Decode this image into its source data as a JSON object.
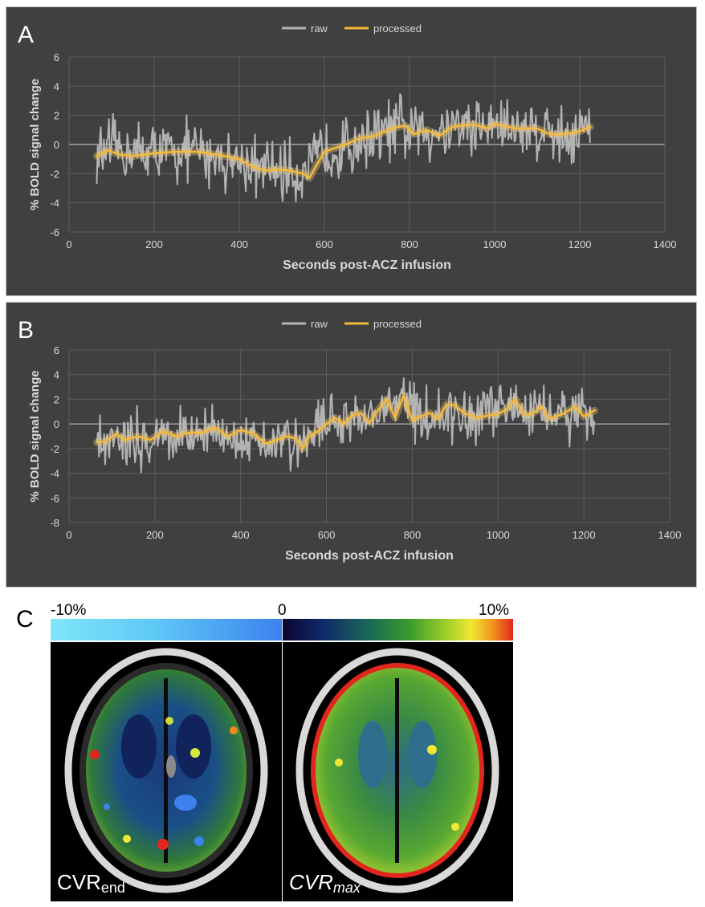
{
  "figure": {
    "panel_a_letter": "A",
    "panel_b_letter": "B",
    "panel_c_letter": "C"
  },
  "chart_data": [
    {
      "type": "line",
      "panel": "A",
      "xlabel": "Seconds post-ACZ infusion",
      "ylabel": "% BOLD signal change",
      "xlim": [
        0,
        1400
      ],
      "ylim": [
        -6,
        6
      ],
      "xticks": [
        0,
        200,
        400,
        600,
        800,
        1000,
        1200,
        1400
      ],
      "yticks": [
        -6,
        -4,
        -2,
        0,
        2,
        4,
        6
      ],
      "grid": true,
      "legend": "top-center",
      "series": [
        {
          "name": "raw",
          "color": "#b3b3b3",
          "x_range": [
            65,
            1225
          ],
          "trend_x": [
            65,
            100,
            200,
            300,
            350,
            400,
            450,
            500,
            550,
            570,
            590,
            620,
            650,
            700,
            750,
            780,
            800,
            830,
            860,
            900,
            950,
            1000,
            1050,
            1100,
            1150,
            1200,
            1225
          ],
          "trend_y": [
            -0.8,
            -0.4,
            -0.6,
            -0.5,
            -0.8,
            -1.2,
            -1.8,
            -1.8,
            -1.9,
            -1.7,
            -0.6,
            -0.3,
            -0.2,
            0.5,
            0.9,
            1.2,
            0.8,
            0.9,
            1.0,
            1.4,
            1.2,
            1.3,
            1.1,
            1.1,
            0.7,
            0.9,
            1.2
          ],
          "noise_amplitude": 2.0,
          "range_min": -4.7,
          "range_max": 5.1
        },
        {
          "name": "processed",
          "color": "#f5b93a",
          "x": [
            65,
            90,
            120,
            150,
            200,
            250,
            300,
            350,
            400,
            430,
            460,
            490,
            520,
            550,
            565,
            580,
            600,
            620,
            650,
            680,
            720,
            760,
            790,
            810,
            840,
            870,
            900,
            950,
            980,
            1000,
            1050,
            1100,
            1130,
            1160,
            1200,
            1225
          ],
          "y": [
            -0.8,
            -0.4,
            -0.7,
            -0.8,
            -0.6,
            -0.5,
            -0.5,
            -0.7,
            -1.0,
            -1.5,
            -1.8,
            -1.7,
            -1.8,
            -2.0,
            -2.3,
            -1.5,
            -0.5,
            -0.3,
            0.0,
            0.4,
            0.6,
            1.1,
            1.3,
            0.7,
            1.0,
            0.6,
            1.2,
            1.4,
            1.1,
            1.4,
            1.1,
            1.1,
            0.7,
            0.7,
            0.9,
            1.2
          ]
        }
      ]
    },
    {
      "type": "line",
      "panel": "B",
      "xlabel": "Seconds post-ACZ infusion",
      "ylabel": "% BOLD signal change",
      "xlim": [
        0,
        1400
      ],
      "ylim": [
        -8,
        6
      ],
      "xticks": [
        0,
        200,
        400,
        600,
        800,
        1000,
        1200,
        1400
      ],
      "yticks": [
        -8,
        -6,
        -4,
        -2,
        0,
        2,
        4,
        6
      ],
      "grid": true,
      "legend": "top-center",
      "series": [
        {
          "name": "raw",
          "color": "#b3b3b3",
          "x_range": [
            65,
            1225
          ],
          "trend_x": [
            65,
            100,
            150,
            200,
            250,
            300,
            350,
            400,
            450,
            500,
            530,
            560,
            600,
            650,
            700,
            740,
            780,
            800,
            850,
            900,
            950,
            1000,
            1030,
            1080,
            1130,
            1180,
            1225
          ],
          "trend_y": [
            -1.5,
            -0.8,
            -1.2,
            -1.2,
            -0.8,
            -0.8,
            -0.8,
            -0.6,
            -1.4,
            -1.2,
            -1.6,
            -0.8,
            0.2,
            0.3,
            0.5,
            1.3,
            1.8,
            0.7,
            0.6,
            0.8,
            0.6,
            1.0,
            1.5,
            0.8,
            0.8,
            1.0,
            1.1
          ],
          "noise_amplitude": 2.2,
          "range_min": -6.7,
          "range_max": 5.0
        },
        {
          "name": "processed",
          "color": "#f5b93a",
          "x": [
            65,
            85,
            110,
            130,
            160,
            190,
            220,
            250,
            280,
            310,
            340,
            370,
            400,
            430,
            460,
            490,
            510,
            530,
            545,
            560,
            580,
            600,
            620,
            640,
            660,
            680,
            700,
            720,
            740,
            760,
            780,
            800,
            820,
            840,
            860,
            880,
            900,
            920,
            950,
            980,
            1000,
            1020,
            1040,
            1060,
            1080,
            1100,
            1120,
            1150,
            1180,
            1200,
            1225
          ],
          "y": [
            -1.5,
            -1.4,
            -0.8,
            -1.3,
            -1.0,
            -1.3,
            -0.6,
            -1.0,
            -0.7,
            -0.7,
            -0.3,
            -1.0,
            -0.5,
            -0.8,
            -1.6,
            -1.2,
            -1.0,
            -1.2,
            -2.0,
            -1.0,
            -0.6,
            0.0,
            0.5,
            0.0,
            0.7,
            0.9,
            0.1,
            1.1,
            2.0,
            0.5,
            2.3,
            0.3,
            0.6,
            0.9,
            0.4,
            1.6,
            1.5,
            0.9,
            0.5,
            0.7,
            0.8,
            1.2,
            2.0,
            0.8,
            0.8,
            1.4,
            0.4,
            0.8,
            1.4,
            0.6,
            1.1
          ]
        }
      ]
    }
  ],
  "colorbar": {
    "neg_label": "-10%",
    "zero_label": "0",
    "pos_label": "10%"
  },
  "brain_maps": {
    "left_label_main": "CVR",
    "left_label_sub": "end",
    "right_label_main": "CVR",
    "right_label_sub": "max"
  }
}
